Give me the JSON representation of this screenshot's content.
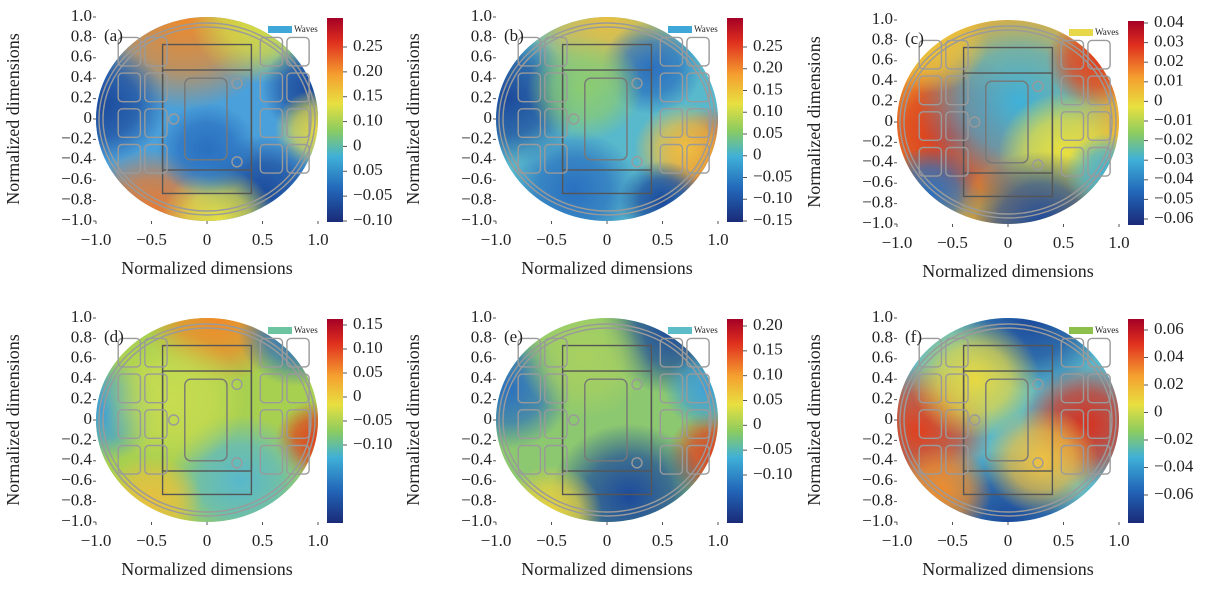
{
  "chart_data": [
    {
      "type": "heatmap",
      "label": "(a)",
      "xlabel": "Normalized dimensions",
      "ylabel": "Normalized dimensions",
      "xlim": [
        -1,
        1
      ],
      "xticks": [
        {
          "value": -1,
          "label": "−1.0"
        },
        {
          "value": -0.5,
          "label": "−0.5"
        },
        0,
        0.5,
        {
          "value": 1,
          "label": "1.0"
        }
      ],
      "ylim": [
        -1,
        1
      ],
      "yticks": [
        {
          "value": 1,
          "label": "1.0"
        },
        0.8,
        0.6,
        0.4,
        0.2,
        0,
        {
          "value": -0.2,
          "label": "−0.2"
        },
        {
          "value": -0.4,
          "label": "−0.4"
        },
        {
          "value": -0.6,
          "label": "−0.6"
        },
        {
          "value": -0.8,
          "label": "−0.8"
        },
        {
          "value": -1,
          "label": "−1.0"
        }
      ],
      "legend": {
        "name": "Waves",
        "color": "#3fa8d8"
      },
      "colorbar_ticks": [
        0.25,
        {
          "value": 0.2,
          "label": "0.20"
        },
        0.15,
        {
          "value": 0.1,
          "label": "0.10"
        },
        0,
        0.05,
        {
          "value": -0.05,
          "label": "−0.05"
        },
        {
          "value": -0.1,
          "label": "−0.10"
        }
      ]
    },
    {
      "type": "heatmap",
      "label": "(b)",
      "xlabel": "Normalized dimensions",
      "ylabel": "Normalized dimensions",
      "xlim": [
        -1,
        1
      ],
      "xticks": [
        {
          "value": -1,
          "label": "−1.0"
        },
        {
          "value": -0.5,
          "label": "−0.5"
        },
        0,
        0.5,
        {
          "value": 1,
          "label": "1.0"
        }
      ],
      "ylim": [
        -1,
        1
      ],
      "yticks": [
        {
          "value": 1,
          "label": "1.0"
        },
        0.8,
        0.6,
        0.4,
        0.2,
        0,
        {
          "value": -0.2,
          "label": "−0.2"
        },
        {
          "value": -0.4,
          "label": "−0.4"
        },
        {
          "value": -0.6,
          "label": "−0.6"
        },
        {
          "value": -0.8,
          "label": "−0.8"
        },
        {
          "value": -1,
          "label": "−1.0"
        }
      ],
      "legend": {
        "name": "Waves",
        "color": "#3fa8d8"
      },
      "colorbar_ticks": [
        0.25,
        {
          "value": 0.2,
          "label": "0.20"
        },
        0.15,
        {
          "value": 0.1,
          "label": "0.10"
        },
        0.05,
        0,
        {
          "value": -0.05,
          "label": "−0.05"
        },
        {
          "value": -0.1,
          "label": "−0.10"
        },
        {
          "value": -0.15,
          "label": "−0.15"
        }
      ]
    },
    {
      "type": "heatmap",
      "label": "(c)",
      "xlabel": "Normalized dimensions",
      "ylabel": "Normalized dimensions",
      "xlim": [
        -1,
        1
      ],
      "xticks": [
        {
          "value": -1,
          "label": "−1.0"
        },
        {
          "value": -0.5,
          "label": "−0.5"
        },
        0,
        0.5,
        {
          "value": 1,
          "label": "1.0"
        }
      ],
      "ylim": [
        -1,
        1
      ],
      "yticks": [
        {
          "value": 1,
          "label": "1.0"
        },
        0.8,
        0.6,
        0.4,
        0.2,
        0,
        {
          "value": -0.2,
          "label": "−0.2"
        },
        {
          "value": -0.4,
          "label": "−0.4"
        },
        {
          "value": -0.6,
          "label": "−0.6"
        },
        {
          "value": -0.8,
          "label": "−0.8"
        },
        {
          "value": -1,
          "label": "−1.0"
        }
      ],
      "legend": {
        "name": "Waves",
        "color": "#e6d84a"
      },
      "colorbar_ticks": [
        0.04,
        0.03,
        0.02,
        0.01,
        0,
        {
          "value": -0.01,
          "label": "−0.01"
        },
        {
          "value": -0.02,
          "label": "−0.02"
        },
        {
          "value": -0.03,
          "label": "−0.03"
        },
        {
          "value": -0.04,
          "label": "−0.04"
        },
        {
          "value": -0.05,
          "label": "−0.05"
        },
        {
          "value": -0.06,
          "label": "−0.06"
        }
      ]
    },
    {
      "type": "heatmap",
      "label": "(d)",
      "xlabel": "Normalized dimensions",
      "ylabel": "Normalized dimensions",
      "xlim": [
        -1,
        1
      ],
      "xticks": [
        {
          "value": -1,
          "label": "−1.0"
        },
        {
          "value": -0.5,
          "label": "−0.5"
        },
        0,
        0.5,
        {
          "value": 1,
          "label": "1.0"
        }
      ],
      "ylim": [
        -1,
        1
      ],
      "yticks": [
        {
          "value": 1,
          "label": "1.0"
        },
        0.8,
        0.6,
        0.4,
        0.2,
        0,
        {
          "value": -0.2,
          "label": "−0.2"
        },
        {
          "value": -0.4,
          "label": "−0.4"
        },
        {
          "value": -0.6,
          "label": "−0.6"
        },
        {
          "value": -0.8,
          "label": "−0.8"
        },
        {
          "value": -1,
          "label": "−1.0"
        }
      ],
      "legend": {
        "name": "Waves",
        "color": "#6cc4a0"
      },
      "colorbar_ticks": [
        0.15,
        {
          "value": 0.1,
          "label": "0.10"
        },
        0.05,
        0,
        {
          "value": -0.05,
          "label": "−0.05"
        },
        {
          "value": -0.1,
          "label": "−0.10"
        }
      ]
    },
    {
      "type": "heatmap",
      "label": "(e)",
      "xlabel": "Normalized dimensions",
      "ylabel": "Normalized dimensions",
      "xlim": [
        -1,
        1
      ],
      "xticks": [
        {
          "value": -1,
          "label": "−1.0"
        },
        {
          "value": -0.5,
          "label": "−0.5"
        },
        0,
        0.5,
        {
          "value": 1,
          "label": "1.0"
        }
      ],
      "ylim": [
        -1,
        1
      ],
      "yticks": [
        {
          "value": 1,
          "label": "1.0"
        },
        0.8,
        0.6,
        0.4,
        0.2,
        0,
        {
          "value": -0.2,
          "label": "−0.2"
        },
        {
          "value": -0.4,
          "label": "−0.4"
        },
        {
          "value": -0.6,
          "label": "−0.6"
        },
        {
          "value": -0.8,
          "label": "−0.8"
        },
        {
          "value": -1,
          "label": "−1.0"
        }
      ],
      "legend": {
        "name": "Waves",
        "color": "#5cbcc8"
      },
      "colorbar_ticks": [
        {
          "value": 0.2,
          "label": "0.20"
        },
        0.15,
        {
          "value": 0.1,
          "label": "0.10"
        },
        0.05,
        0,
        {
          "value": -0.05,
          "label": "−0.05"
        },
        {
          "value": -0.1,
          "label": "−0.10"
        }
      ]
    },
    {
      "type": "heatmap",
      "label": "(f)",
      "xlabel": "Normalized dimensions",
      "ylabel": "Normalized dimensions",
      "xlim": [
        -1,
        1
      ],
      "xticks": [
        {
          "value": -1,
          "label": "−1.0"
        },
        {
          "value": -0.5,
          "label": "−0.5"
        },
        0,
        0.5,
        {
          "value": 1,
          "label": "1.0"
        }
      ],
      "ylim": [
        -1,
        1
      ],
      "yticks": [
        {
          "value": 1,
          "label": "1.0"
        },
        0.8,
        0.6,
        0.4,
        0.2,
        0,
        {
          "value": -0.2,
          "label": "−0.2"
        },
        {
          "value": -0.4,
          "label": "−0.4"
        },
        {
          "value": -0.6,
          "label": "−0.6"
        },
        {
          "value": -0.8,
          "label": "−0.8"
        },
        {
          "value": -1,
          "label": "−1.0"
        }
      ],
      "legend": {
        "name": "Waves",
        "color": "#8cc04a"
      },
      "colorbar_ticks": [
        0.06,
        0.04,
        0.02,
        0,
        {
          "value": -0.02,
          "label": "−0.02"
        },
        {
          "value": -0.04,
          "label": "−0.04"
        },
        {
          "value": -0.06,
          "label": "−0.06"
        }
      ]
    }
  ]
}
